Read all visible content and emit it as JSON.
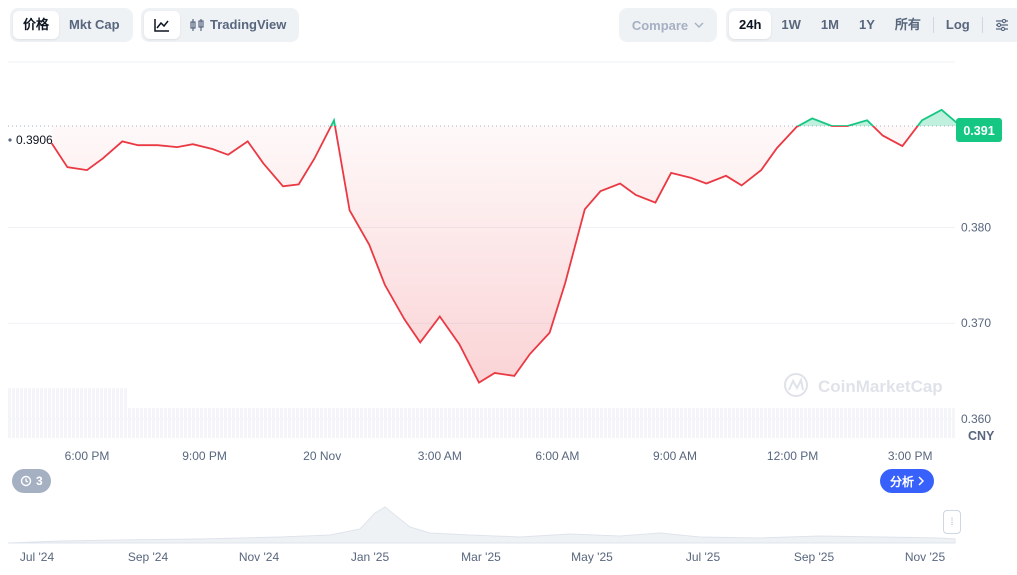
{
  "toolbar": {
    "view_tabs": [
      "价格",
      "Mkt Cap"
    ],
    "active_view": 0,
    "chart_type_icon": "line-chart-icon",
    "tradingview_label": "TradingView",
    "tradingview_icon": "candles-icon",
    "compare_label": "Compare",
    "ranges": [
      "24h",
      "1W",
      "1M",
      "1Y",
      "所有"
    ],
    "active_range": 0,
    "log_label": "Log",
    "settings_icon": "sliders-icon"
  },
  "colors": {
    "up": "#16c784",
    "down": "#ea3943",
    "up_fill": "#16c784",
    "down_fill": "#ea3943",
    "grid": "#eff2f5",
    "axis_text": "#58667e",
    "brand_blue": "#3861fb"
  },
  "chart_data": {
    "type": "area",
    "ref_price": 0.3906,
    "ref_price_label": "0.3906",
    "current_price_label": "0.391",
    "y_ticks": [
      0.38,
      0.37,
      0.36
    ],
    "y_tick_labels": [
      "0.380",
      "0.370",
      "0.360"
    ],
    "currency": "CNY",
    "x_tick_labels": [
      "6:00 PM",
      "9:00 PM",
      "20 Nov",
      "3:00 AM",
      "6:00 AM",
      "9:00 AM",
      "12:00 PM",
      "3:00 PM"
    ],
    "y_range": [
      0.3578,
      0.3975
    ],
    "hours_from_first_tick": [
      -0.9,
      -0.5,
      0,
      0.4,
      0.9,
      1.3,
      1.8,
      2.3,
      2.7,
      3.2,
      3.6,
      4.1,
      4.5,
      5.0,
      5.4,
      5.8,
      6.3,
      6.7,
      7.2,
      7.6,
      8.1,
      8.5,
      9.0,
      9.5,
      10.0,
      10.4,
      10.9,
      11.3,
      11.8,
      12.2,
      12.7,
      13.1,
      13.6,
      14.0,
      14.5,
      14.9,
      15.4,
      15.8,
      16.3,
      16.7,
      17.2,
      17.6,
      18.1,
      18.5,
      19.0,
      19.4,
      19.9,
      20.3,
      20.8,
      21.3,
      21.8,
      22.2
    ],
    "prices": [
      0.3888,
      0.3863,
      0.386,
      0.3872,
      0.389,
      0.3886,
      0.3886,
      0.3884,
      0.3887,
      0.3882,
      0.3876,
      0.389,
      0.3867,
      0.3843,
      0.3845,
      0.3872,
      0.3912,
      0.3818,
      0.3782,
      0.374,
      0.3704,
      0.368,
      0.3707,
      0.3678,
      0.3638,
      0.3648,
      0.3645,
      0.3668,
      0.369,
      0.3742,
      0.3819,
      0.3838,
      0.3846,
      0.3834,
      0.3826,
      0.3857,
      0.3852,
      0.3846,
      0.3854,
      0.3844,
      0.386,
      0.3883,
      0.3905,
      0.3914,
      0.3906,
      0.3906,
      0.3912,
      0.3896,
      0.3885,
      0.3912,
      0.3923,
      0.3909
    ]
  },
  "watermark": "CoinMarketCap",
  "navigator": {
    "month_labels": [
      "Jul '24",
      "Sep '24",
      "Nov '24",
      "Jan '25",
      "Mar '25",
      "May '25",
      "Jul '25",
      "Sep '25",
      "Nov '25"
    ]
  },
  "annotation_badge": {
    "count": "3",
    "icon": "history-icon"
  },
  "analyze_button": {
    "label": "分析",
    "icon": "chevron-right-icon"
  }
}
